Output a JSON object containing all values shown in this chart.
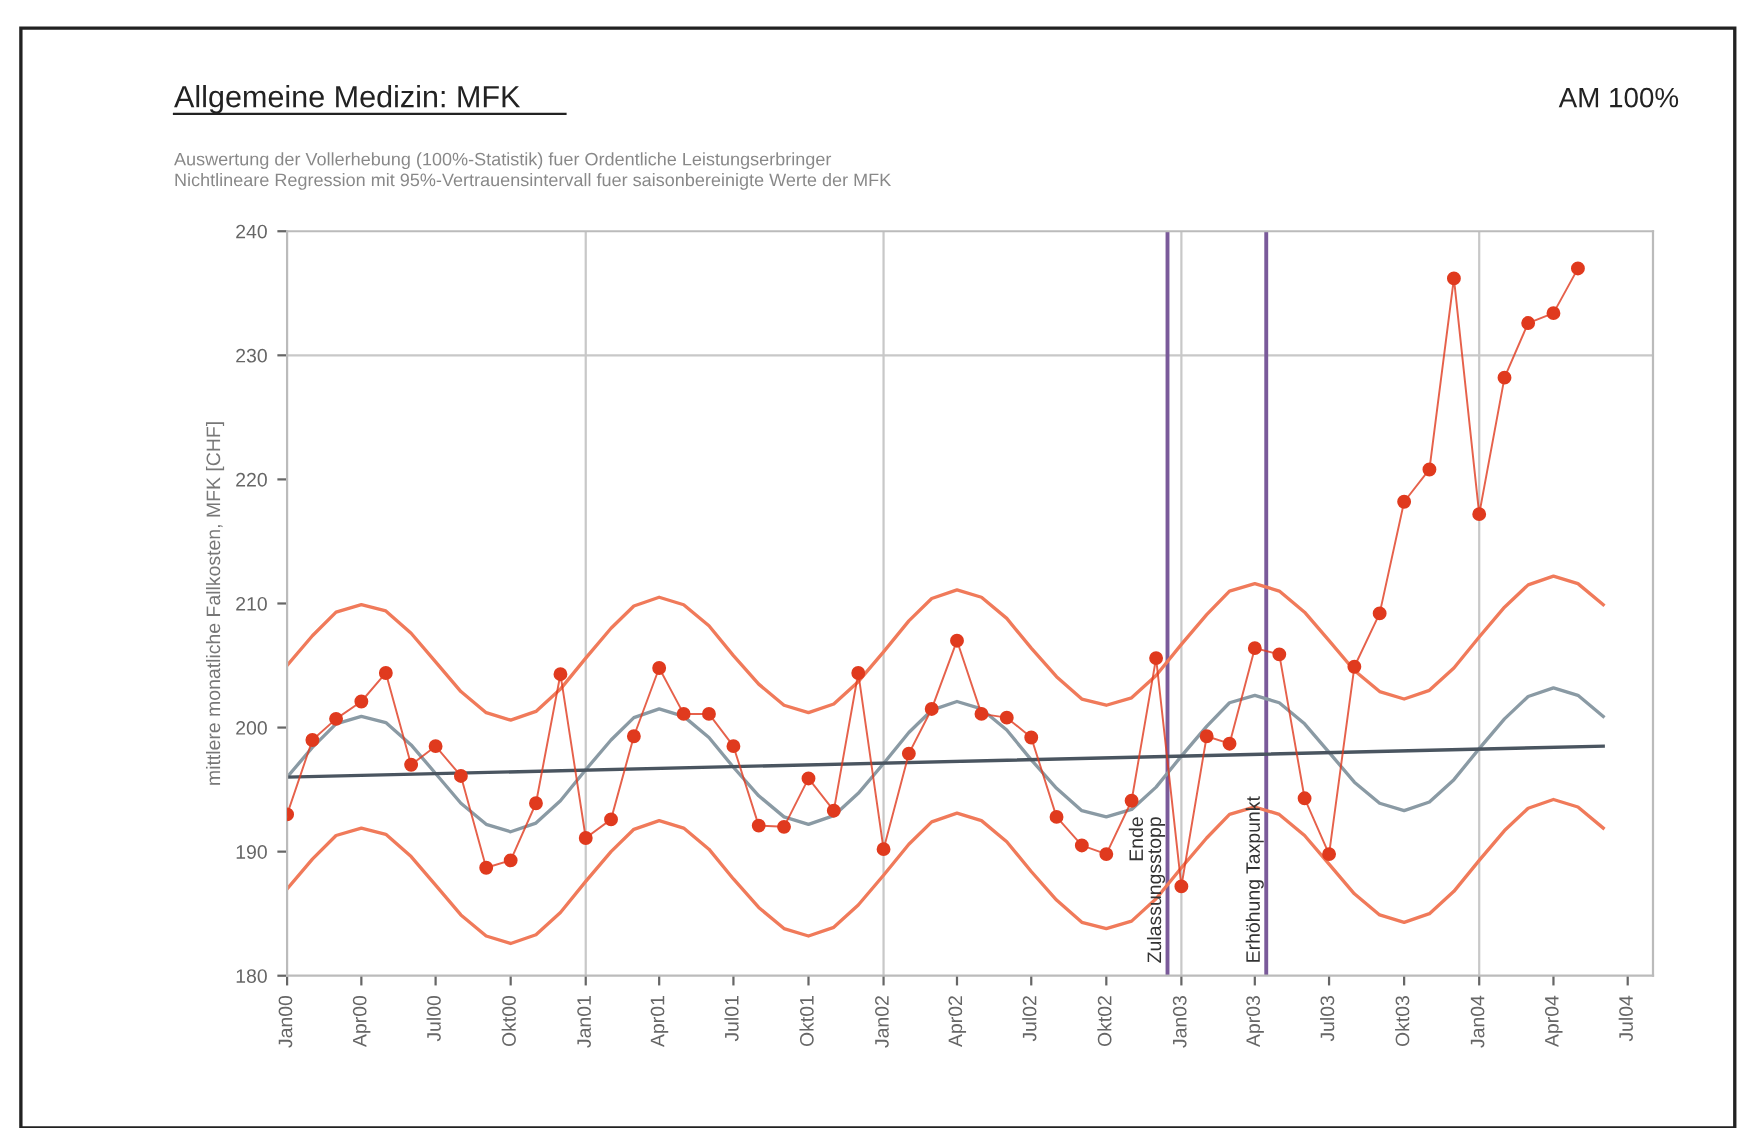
{
  "chart_data": {
    "type": "line",
    "title": "Allgemeine Medizin: MFK",
    "subtitle": "Auswertung der Vollerhebung (100%-Statistik) fuer Ordentliche Leistungserbringer\nNichtlineare Regression mit 95%-Vertrauensintervall fuer saisonbereinigte Werte der MFK",
    "ylabel": "mittlere monatliche Fallkosten, MFK [CHF]",
    "annotations": [
      "AM 100%"
    ],
    "ylim": [
      180,
      240
    ],
    "yticks": [
      180,
      190,
      200,
      210,
      220,
      230,
      240
    ],
    "xlim": [
      "2000-01",
      "2004-08"
    ],
    "xticks": [
      {
        "value": "2000-01",
        "label": "Jan00"
      },
      {
        "value": "2000-04",
        "label": "Apr00"
      },
      {
        "value": "2000-07",
        "label": "Jul00"
      },
      {
        "value": "2000-10",
        "label": "Okt00"
      },
      {
        "value": "2001-01",
        "label": "Jan01"
      },
      {
        "value": "2001-04",
        "label": "Apr01"
      },
      {
        "value": "2001-07",
        "label": "Jul01"
      },
      {
        "value": "2001-10",
        "label": "Okt01"
      },
      {
        "value": "2002-01",
        "label": "Jan02"
      },
      {
        "value": "2002-04",
        "label": "Apr02"
      },
      {
        "value": "2002-07",
        "label": "Jul02"
      },
      {
        "value": "2002-10",
        "label": "Okt02"
      },
      {
        "value": "2003-01",
        "label": "Jan03"
      },
      {
        "value": "2003-04",
        "label": "Apr03"
      },
      {
        "value": "2003-07",
        "label": "Jul03"
      },
      {
        "value": "2003-10",
        "label": "Okt03"
      },
      {
        "value": "2004-01",
        "label": "Jan04"
      },
      {
        "value": "2004-04",
        "label": "Apr04"
      },
      {
        "value": "2004-07",
        "label": "Jul04"
      }
    ],
    "grid": false,
    "legend": false,
    "ref_lines": [
      {
        "axis": "y",
        "value": 230,
        "color": "#c8c8c8"
      },
      {
        "axis": "x",
        "value": "2001-01",
        "color": "#c8c8c8"
      },
      {
        "axis": "x",
        "value": "2002-01",
        "color": "#c8c8c8"
      },
      {
        "axis": "x",
        "value": "2003-01",
        "color": "#c8c8c8"
      },
      {
        "axis": "x",
        "value": "2004-01",
        "color": "#c8c8c8"
      },
      {
        "axis": "x",
        "value": "2002-12-15",
        "label": "Ende\nZulassungsstopp",
        "color": "#7a5a9a"
      },
      {
        "axis": "x",
        "value": "2003-04-15",
        "label": "Erhöhung Taxpunkt",
        "color": "#7a5a9a"
      }
    ],
    "series": [
      {
        "color": "#e03a1e",
        "marker": "circle",
        "line_style": "solid",
        "x": [
          "2000-01",
          "2000-02",
          "2000-03",
          "2000-04",
          "2000-05",
          "2000-06",
          "2000-07",
          "2000-08",
          "2000-09",
          "2000-10",
          "2000-11",
          "2000-12",
          "2001-01",
          "2001-02",
          "2001-03",
          "2001-04",
          "2001-05",
          "2001-06",
          "2001-07",
          "2001-08",
          "2001-09",
          "2001-10",
          "2001-11",
          "2001-12",
          "2002-01",
          "2002-02",
          "2002-03",
          "2002-04",
          "2002-05",
          "2002-06",
          "2002-07",
          "2002-08",
          "2002-09",
          "2002-10",
          "2002-11",
          "2002-12",
          "2003-01",
          "2003-02",
          "2003-03",
          "2003-04",
          "2003-05",
          "2003-06",
          "2003-07",
          "2003-08",
          "2003-09",
          "2003-10",
          "2003-11",
          "2003-12",
          "2004-01",
          "2004-02",
          "2004-03",
          "2004-04",
          "2004-05"
        ],
        "values": [
          193.0,
          199.0,
          200.7,
          202.1,
          204.4,
          197.0,
          198.5,
          196.1,
          188.7,
          189.3,
          193.9,
          204.3,
          191.1,
          192.6,
          199.3,
          204.8,
          201.1,
          201.1,
          198.5,
          192.1,
          192.0,
          195.9,
          193.3,
          204.4,
          190.2,
          197.9,
          201.5,
          207.0,
          201.1,
          200.8,
          199.2,
          192.8,
          190.5,
          189.8,
          194.1,
          205.6,
          187.2,
          199.3,
          198.7,
          206.4,
          205.9,
          194.3,
          189.8,
          204.9,
          209.2,
          218.2,
          220.8,
          236.2,
          217.2,
          228.2,
          232.6,
          233.4,
          237.0
        ]
      },
      {
        "color": "#8a9aa4",
        "marker": "none",
        "line_style": "solid",
        "x": [
          "2000-01",
          "2000-02",
          "2000-03",
          "2000-04",
          "2000-05",
          "2000-06",
          "2000-07",
          "2000-08",
          "2000-09",
          "2000-10",
          "2000-11",
          "2000-12",
          "2001-01",
          "2001-02",
          "2001-03",
          "2001-04",
          "2001-05",
          "2001-06",
          "2001-07",
          "2001-08",
          "2001-09",
          "2001-10",
          "2001-11",
          "2001-12",
          "2002-01",
          "2002-02",
          "2002-03",
          "2002-04",
          "2002-05",
          "2002-06",
          "2002-07",
          "2002-08",
          "2002-09",
          "2002-10",
          "2002-11",
          "2002-12",
          "2003-01",
          "2003-02",
          "2003-03",
          "2003-04",
          "2003-05",
          "2003-06",
          "2003-07",
          "2003-08",
          "2003-09",
          "2003-10",
          "2003-11",
          "2003-12",
          "2004-01",
          "2004-02",
          "2004-03",
          "2004-04",
          "2004-05",
          "2004-06"
        ],
        "values": [
          196.0,
          198.4,
          200.3,
          200.9,
          200.4,
          198.6,
          196.3,
          193.9,
          192.2,
          191.6,
          192.3,
          194.1,
          196.6,
          199.0,
          200.8,
          201.5,
          200.9,
          199.2,
          196.8,
          194.5,
          192.8,
          192.2,
          192.9,
          194.7,
          197.1,
          199.6,
          201.4,
          202.1,
          201.5,
          199.8,
          197.4,
          195.1,
          193.3,
          192.8,
          193.4,
          195.2,
          197.7,
          200.1,
          202.0,
          202.6,
          202.0,
          200.3,
          198.0,
          195.6,
          193.9,
          193.3,
          194.0,
          195.8,
          198.3,
          200.7,
          202.5,
          203.2,
          202.6,
          200.9
        ]
      },
      {
        "color": "#f07a5a",
        "marker": "none",
        "line_style": "solid",
        "x": [
          "2000-01",
          "2000-02",
          "2000-03",
          "2000-04",
          "2000-05",
          "2000-06",
          "2000-07",
          "2000-08",
          "2000-09",
          "2000-10",
          "2000-11",
          "2000-12",
          "2001-01",
          "2001-02",
          "2001-03",
          "2001-04",
          "2001-05",
          "2001-06",
          "2001-07",
          "2001-08",
          "2001-09",
          "2001-10",
          "2001-11",
          "2001-12",
          "2002-01",
          "2002-02",
          "2002-03",
          "2002-04",
          "2002-05",
          "2002-06",
          "2002-07",
          "2002-08",
          "2002-09",
          "2002-10",
          "2002-11",
          "2002-12",
          "2003-01",
          "2003-02",
          "2003-03",
          "2003-04",
          "2003-05",
          "2003-06",
          "2003-07",
          "2003-08",
          "2003-09",
          "2003-10",
          "2003-11",
          "2003-12",
          "2004-01",
          "2004-02",
          "2004-03",
          "2004-04",
          "2004-05",
          "2004-06"
        ],
        "values": [
          205.0,
          207.4,
          209.3,
          209.9,
          209.4,
          207.6,
          205.3,
          202.9,
          201.2,
          200.6,
          201.3,
          203.1,
          205.6,
          208.0,
          209.8,
          210.5,
          209.9,
          208.2,
          205.8,
          203.5,
          201.8,
          201.2,
          201.9,
          203.7,
          206.1,
          208.6,
          210.4,
          211.1,
          210.5,
          208.8,
          206.4,
          204.1,
          202.3,
          201.8,
          202.4,
          204.2,
          206.7,
          209.1,
          211.0,
          211.6,
          211.0,
          209.3,
          207.0,
          204.6,
          202.9,
          202.3,
          203.0,
          204.8,
          207.3,
          209.7,
          211.5,
          212.2,
          211.6,
          209.9
        ]
      },
      {
        "color": "#f07a5a",
        "marker": "none",
        "line_style": "solid",
        "x": [
          "2000-01",
          "2000-02",
          "2000-03",
          "2000-04",
          "2000-05",
          "2000-06",
          "2000-07",
          "2000-08",
          "2000-09",
          "2000-10",
          "2000-11",
          "2000-12",
          "2001-01",
          "2001-02",
          "2001-03",
          "2001-04",
          "2001-05",
          "2001-06",
          "2001-07",
          "2001-08",
          "2001-09",
          "2001-10",
          "2001-11",
          "2001-12",
          "2002-01",
          "2002-02",
          "2002-03",
          "2002-04",
          "2002-05",
          "2002-06",
          "2002-07",
          "2002-08",
          "2002-09",
          "2002-10",
          "2002-11",
          "2002-12",
          "2003-01",
          "2003-02",
          "2003-03",
          "2003-04",
          "2003-05",
          "2003-06",
          "2003-07",
          "2003-08",
          "2003-09",
          "2003-10",
          "2003-11",
          "2003-12",
          "2004-01",
          "2004-02",
          "2004-03",
          "2004-04",
          "2004-05",
          "2004-06"
        ],
        "values": [
          187.0,
          189.4,
          191.3,
          191.9,
          191.4,
          189.6,
          187.3,
          184.9,
          183.2,
          182.6,
          183.3,
          185.1,
          187.6,
          190.0,
          191.8,
          192.5,
          191.9,
          190.2,
          187.8,
          185.5,
          183.8,
          183.2,
          183.9,
          185.7,
          188.1,
          190.6,
          192.4,
          193.1,
          192.5,
          190.8,
          188.4,
          186.1,
          184.3,
          183.8,
          184.4,
          186.2,
          188.7,
          191.1,
          193.0,
          193.6,
          193.0,
          191.3,
          189.0,
          186.6,
          184.9,
          184.3,
          185.0,
          186.8,
          189.3,
          191.7,
          193.5,
          194.2,
          193.6,
          191.9
        ]
      },
      {
        "color": "#4a5560",
        "marker": "none",
        "line_style": "solid",
        "x": [
          "2000-01",
          "2004-06"
        ],
        "values": [
          196.0,
          198.5
        ]
      }
    ]
  }
}
